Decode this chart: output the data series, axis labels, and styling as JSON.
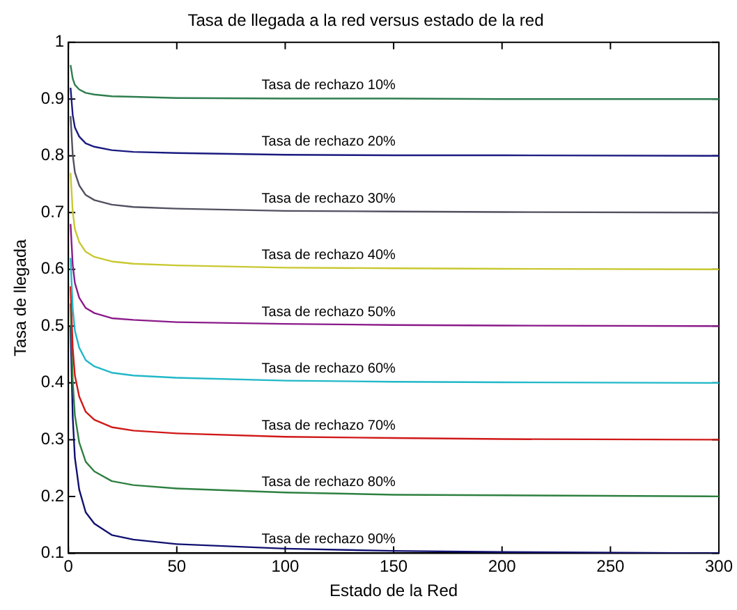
{
  "chart_data": {
    "type": "line",
    "title": "Tasa de llegada a la red versus estado de la red",
    "xlabel": "Estado de la Red",
    "ylabel": "Tasa de llegada",
    "x": [
      1,
      2,
      3,
      5,
      8,
      12,
      20,
      30,
      50,
      100,
      150,
      200,
      300
    ],
    "series": [
      {
        "name": "Tasa de rechazo 10%",
        "color": "#2e7d4f",
        "values": [
          0.96,
          0.936,
          0.925,
          0.917,
          0.911,
          0.908,
          0.905,
          0.904,
          0.902,
          0.901,
          0.901,
          0.9,
          0.9
        ]
      },
      {
        "name": "Tasa de rechazo 20%",
        "color": "#1a1a80",
        "values": [
          0.92,
          0.872,
          0.85,
          0.834,
          0.822,
          0.816,
          0.81,
          0.807,
          0.805,
          0.802,
          0.801,
          0.801,
          0.8
        ]
      },
      {
        "name": "Tasa de rechazo 30%",
        "color": "#505060",
        "values": [
          0.87,
          0.802,
          0.771,
          0.748,
          0.731,
          0.722,
          0.714,
          0.71,
          0.707,
          0.703,
          0.702,
          0.701,
          0.7
        ]
      },
      {
        "name": "Tasa de rechazo 40%",
        "color": "#c8c830",
        "values": [
          0.77,
          0.702,
          0.671,
          0.648,
          0.631,
          0.622,
          0.614,
          0.61,
          0.607,
          0.603,
          0.602,
          0.601,
          0.6
        ]
      },
      {
        "name": "Tasa de rechazo 50%",
        "color": "#8a1a8a",
        "values": [
          0.68,
          0.608,
          0.576,
          0.55,
          0.532,
          0.523,
          0.514,
          0.511,
          0.507,
          0.504,
          0.502,
          0.501,
          0.5
        ]
      },
      {
        "name": "Tasa de rechazo 60%",
        "color": "#20b8c8",
        "values": [
          0.62,
          0.532,
          0.492,
          0.462,
          0.44,
          0.429,
          0.418,
          0.413,
          0.409,
          0.404,
          0.402,
          0.401,
          0.4
        ]
      },
      {
        "name": "Tasa de rechazo 70%",
        "color": "#d01818",
        "values": [
          0.57,
          0.462,
          0.413,
          0.376,
          0.349,
          0.335,
          0.322,
          0.316,
          0.311,
          0.305,
          0.303,
          0.301,
          0.3
        ]
      },
      {
        "name": "Tasa de rechazo 80%",
        "color": "#2e8040",
        "values": [
          0.54,
          0.404,
          0.343,
          0.295,
          0.261,
          0.244,
          0.227,
          0.22,
          0.214,
          0.207,
          0.203,
          0.202,
          0.2
        ]
      },
      {
        "name": "Tasa de rechazo 90%",
        "color": "#101070",
        "values": [
          0.5,
          0.34,
          0.268,
          0.212,
          0.172,
          0.152,
          0.132,
          0.124,
          0.116,
          0.108,
          0.104,
          0.102,
          0.1
        ]
      }
    ],
    "xlim": [
      0,
      300
    ],
    "xticks": [
      0,
      50,
      100,
      150,
      200,
      250,
      300
    ],
    "ylim": [
      0.1,
      1
    ],
    "yticks": [
      0.1,
      0.2,
      0.3,
      0.4,
      0.5,
      0.6,
      0.7,
      0.8,
      0.9,
      1
    ],
    "grid": false,
    "legend": false,
    "marker": "none",
    "line_style": "solid"
  }
}
